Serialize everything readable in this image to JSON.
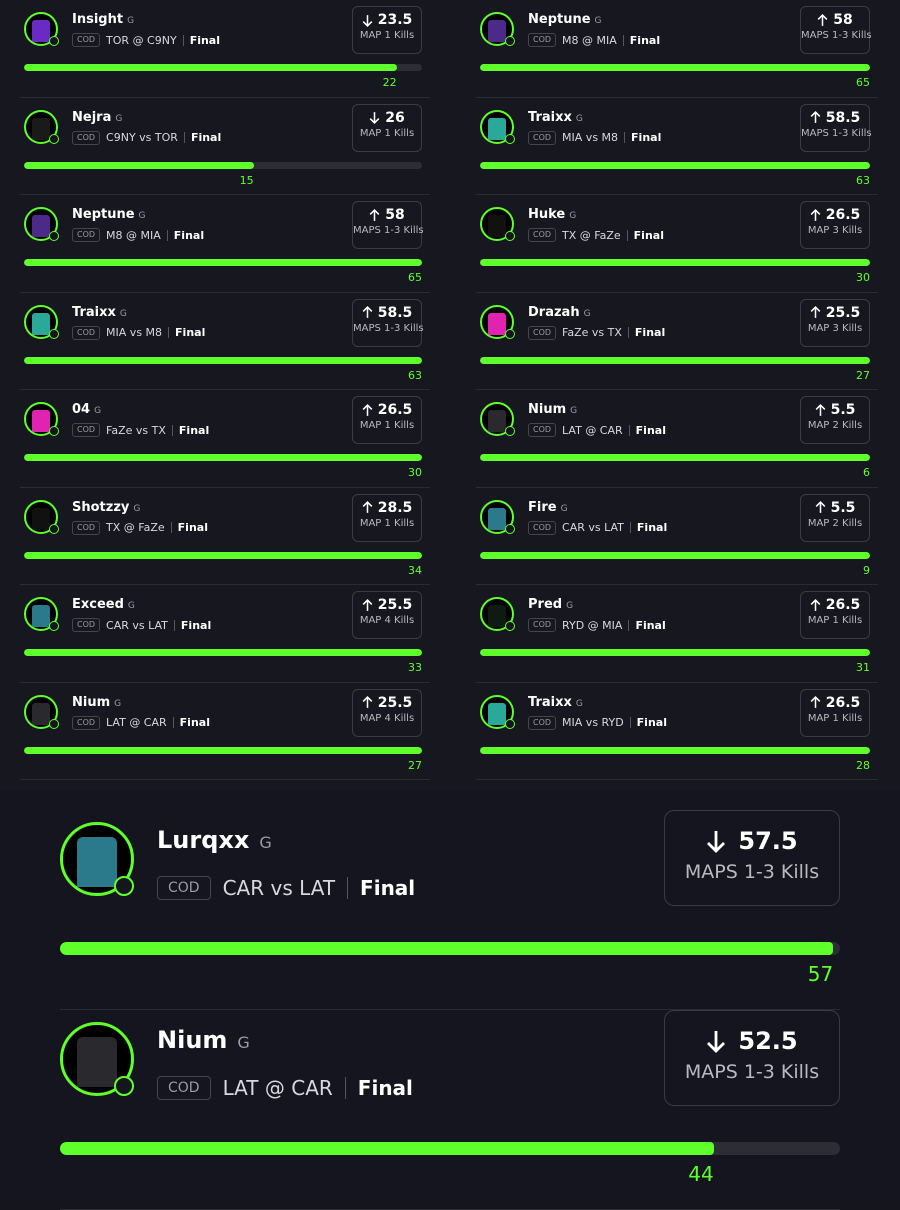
{
  "left": [
    {
      "name": "Insight",
      "tag": "G",
      "game": "COD",
      "match": "TOR @ C9NY",
      "status": "Final",
      "direction": "down",
      "line": 23.5,
      "stat": "MAP 1 Kills",
      "result": 22,
      "color": "#6a2bc4"
    },
    {
      "name": "Nejra",
      "tag": "G",
      "game": "COD",
      "match": "C9NY vs TOR",
      "status": "Final",
      "direction": "down",
      "line": 26,
      "stat": "MAP 1 Kills",
      "result": 15,
      "color": "#1a1a1a"
    },
    {
      "name": "Neptune",
      "tag": "G",
      "game": "COD",
      "match": "M8 @ MIA",
      "status": "Final",
      "direction": "up",
      "line": 58,
      "stat": "MAPS 1-3 Kills",
      "result": 65,
      "color": "#4b2a8a"
    },
    {
      "name": "Traixx",
      "tag": "G",
      "game": "COD",
      "match": "MIA vs M8",
      "status": "Final",
      "direction": "up",
      "line": 58.5,
      "stat": "MAPS 1-3 Kills",
      "result": 63,
      "color": "#2aa89a"
    },
    {
      "name": "04",
      "tag": "G",
      "game": "COD",
      "match": "FaZe vs TX",
      "status": "Final",
      "direction": "up",
      "line": 26.5,
      "stat": "MAP 1 Kills",
      "result": 30,
      "color": "#e023b0"
    },
    {
      "name": "Shotzzy",
      "tag": "G",
      "game": "COD",
      "match": "TX @ FaZe",
      "status": "Final",
      "direction": "up",
      "line": 28.5,
      "stat": "MAP 1 Kills",
      "result": 34,
      "color": "#111111"
    },
    {
      "name": "Exceed",
      "tag": "G",
      "game": "COD",
      "match": "CAR vs LAT",
      "status": "Final",
      "direction": "up",
      "line": 25.5,
      "stat": "MAP 4 Kills",
      "result": 33,
      "color": "#2a7a8c"
    },
    {
      "name": "Nium",
      "tag": "G",
      "game": "COD",
      "match": "LAT @ CAR",
      "status": "Final",
      "direction": "up",
      "line": 25.5,
      "stat": "MAP 4 Kills",
      "result": 27,
      "color": "#2a2a2e"
    }
  ],
  "right": [
    {
      "name": "Neptune",
      "tag": "G",
      "game": "COD",
      "match": "M8 @ MIA",
      "status": "Final",
      "direction": "up",
      "line": 58,
      "stat": "MAPS 1-3 Kills",
      "result": 65,
      "color": "#4b2a8a"
    },
    {
      "name": "Traixx",
      "tag": "G",
      "game": "COD",
      "match": "MIA vs M8",
      "status": "Final",
      "direction": "up",
      "line": 58.5,
      "stat": "MAPS 1-3 Kills",
      "result": 63,
      "color": "#2aa89a"
    },
    {
      "name": "Huke",
      "tag": "G",
      "game": "COD",
      "match": "TX @ FaZe",
      "status": "Final",
      "direction": "up",
      "line": 26.5,
      "stat": "MAP 3 Kills",
      "result": 30,
      "color": "#111111"
    },
    {
      "name": "Drazah",
      "tag": "G",
      "game": "COD",
      "match": "FaZe vs TX",
      "status": "Final",
      "direction": "up",
      "line": 25.5,
      "stat": "MAP 3 Kills",
      "result": 27,
      "color": "#e023b0"
    },
    {
      "name": "Nium",
      "tag": "G",
      "game": "COD",
      "match": "LAT @ CAR",
      "status": "Final",
      "direction": "up",
      "line": 5.5,
      "stat": "MAP 2 Kills",
      "result": 6,
      "color": "#2a2a2e"
    },
    {
      "name": "Fire",
      "tag": "G",
      "game": "COD",
      "match": "CAR vs LAT",
      "status": "Final",
      "direction": "up",
      "line": 5.5,
      "stat": "MAP 2 Kills",
      "result": 9,
      "color": "#2a7a8c"
    },
    {
      "name": "Pred",
      "tag": "G",
      "game": "COD",
      "match": "RYD @ MIA",
      "status": "Final",
      "direction": "up",
      "line": 26.5,
      "stat": "MAP 1 Kills",
      "result": 31,
      "color": "#0e1a12"
    },
    {
      "name": "Traixx",
      "tag": "G",
      "game": "COD",
      "match": "MIA vs RYD",
      "status": "Final",
      "direction": "up",
      "line": 26.5,
      "stat": "MAP 1 Kills",
      "result": 28,
      "color": "#2aa89a"
    }
  ],
  "featured": [
    {
      "name": "Lurqxx",
      "tag": "G",
      "game": "COD",
      "match": "CAR vs LAT",
      "status": "Final",
      "direction": "down",
      "line": 57.5,
      "stat": "MAPS 1-3 Kills",
      "result": 57,
      "color": "#2a7a8c"
    },
    {
      "name": "Nium",
      "tag": "G",
      "game": "COD",
      "match": "LAT @ CAR",
      "status": "Final",
      "direction": "down",
      "line": 52.5,
      "stat": "MAPS 1-3 Kills",
      "result": 44,
      "color": "#2a2a2e"
    }
  ]
}
